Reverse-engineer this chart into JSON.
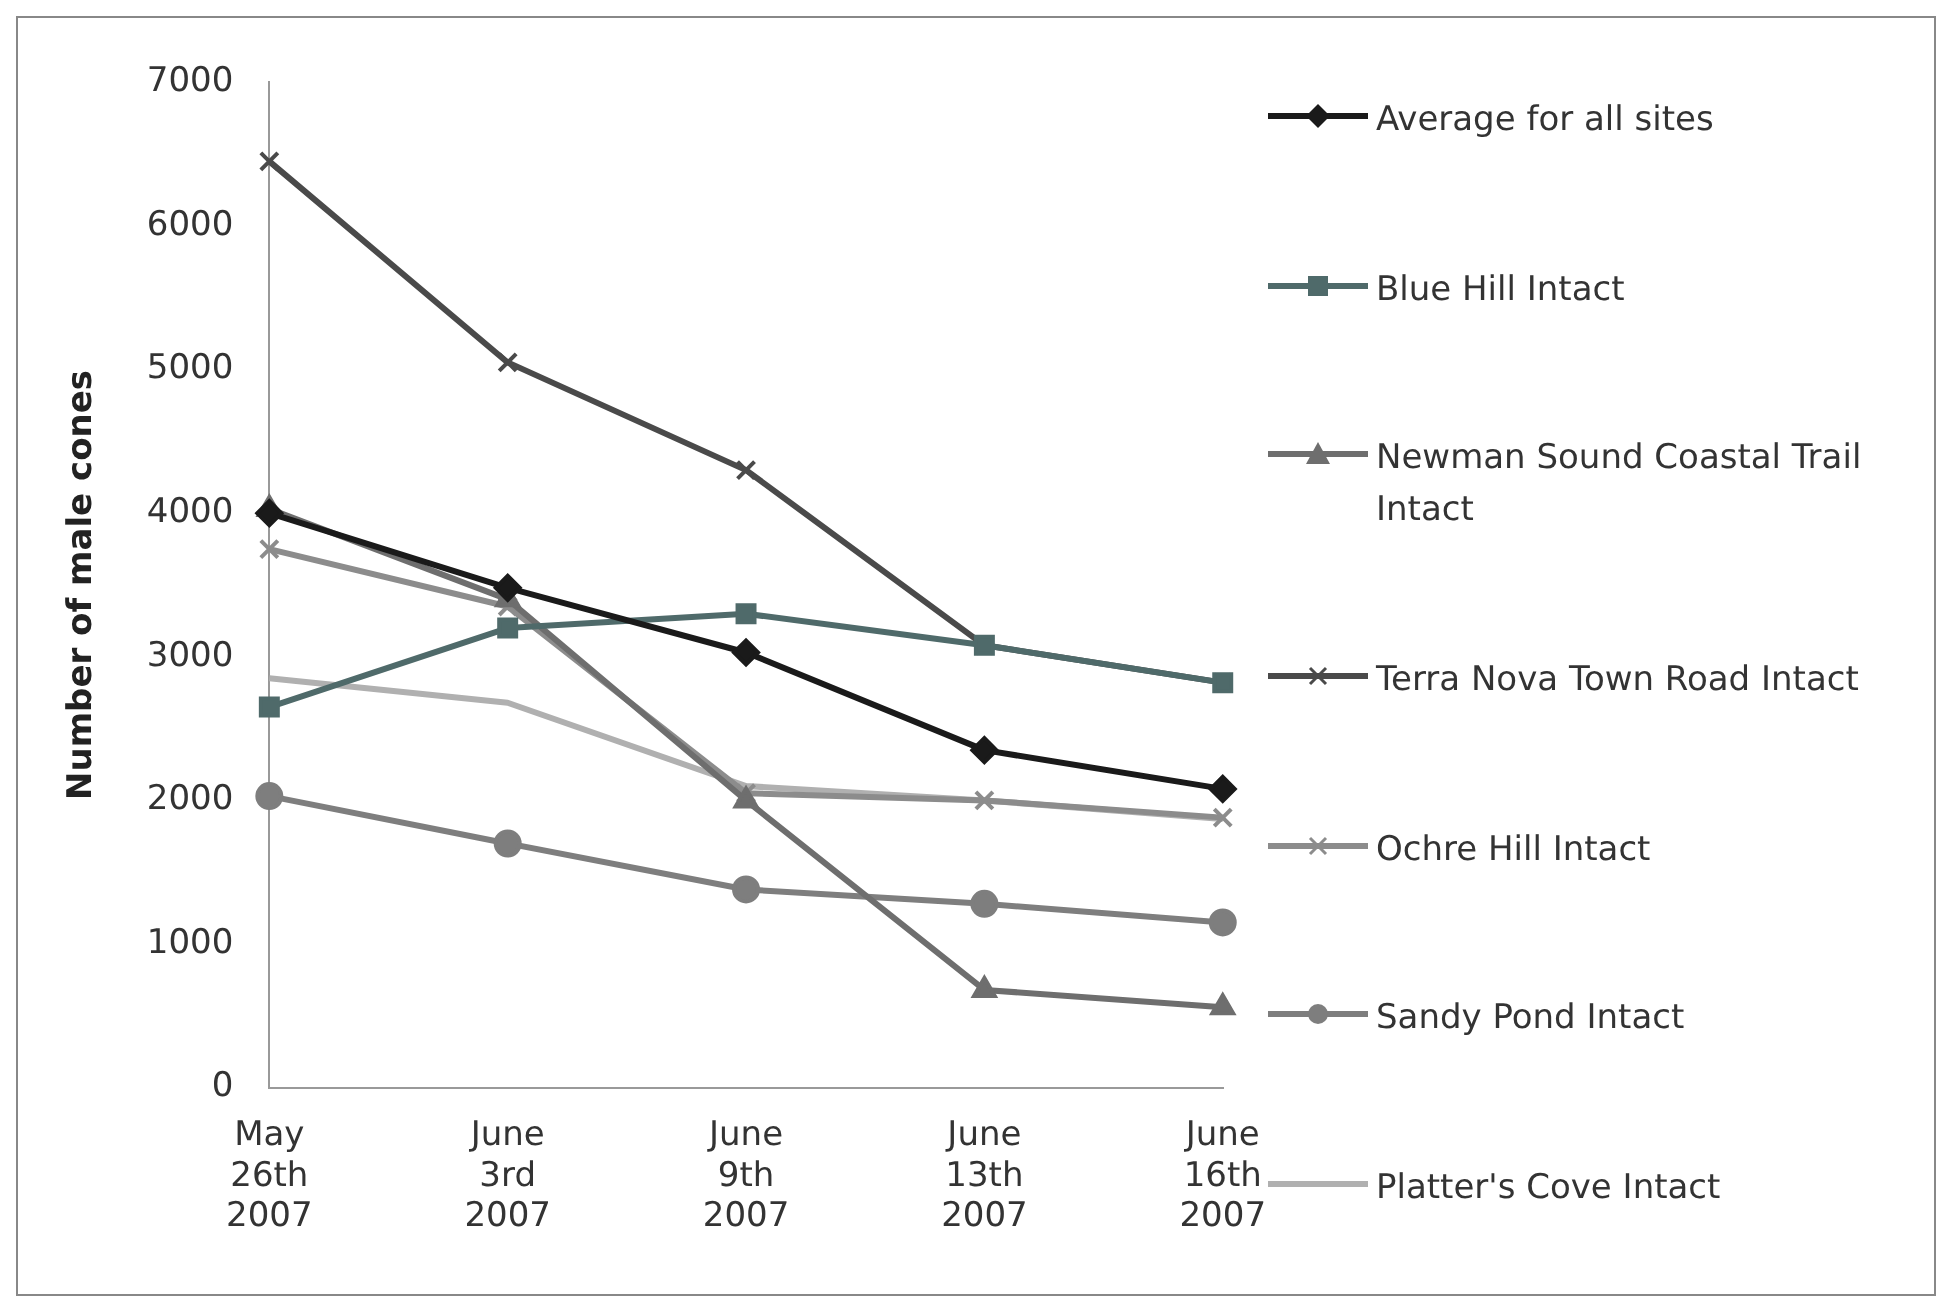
{
  "chart_data": {
    "type": "line",
    "ylabel": "Number of male cones",
    "categories": [
      "May 26th 2007",
      "June 3rd 2007",
      "June 9th 2007",
      "June 13th 2007",
      "June 16th 2007"
    ],
    "ylim": [
      0,
      7000
    ],
    "yticks": [
      0,
      1000,
      2000,
      3000,
      4000,
      5000,
      6000,
      7000
    ],
    "grid": false,
    "legend": "right",
    "series": [
      {
        "name": "Average for all sites",
        "color": "#1a1a1a",
        "marker": "diamond",
        "values": [
          4000,
          3480,
          3030,
          2350,
          2080
        ]
      },
      {
        "name": "Blue Hill Intact",
        "color": "#4f6a6a",
        "marker": "square",
        "values": [
          2650,
          3200,
          3300,
          3080,
          2820
        ]
      },
      {
        "name": "Newman Sound Coastal Trail Intact",
        "color": "#6e6e6e",
        "marker": "triangle",
        "values": [
          4030,
          3400,
          2000,
          680,
          560
        ]
      },
      {
        "name": "Terra Nova Town Road Intact",
        "color": "#4a4a4a",
        "marker": "cross",
        "values": [
          6450,
          5050,
          4300,
          3080,
          2820
        ]
      },
      {
        "name": "Ochre Hill Intact",
        "color": "#8c8c8c",
        "marker": "cross",
        "values": [
          3750,
          3350,
          2050,
          2000,
          1880
        ]
      },
      {
        "name": "Sandy Pond Intact",
        "color": "#7e7e7e",
        "marker": "circle",
        "values": [
          2030,
          1700,
          1380,
          1280,
          1150
        ]
      },
      {
        "name": "Platter's Cove Intact",
        "color": "#b0b0b0",
        "marker": "none",
        "values": [
          2850,
          2680,
          2100,
          2000,
          1870
        ]
      }
    ]
  }
}
